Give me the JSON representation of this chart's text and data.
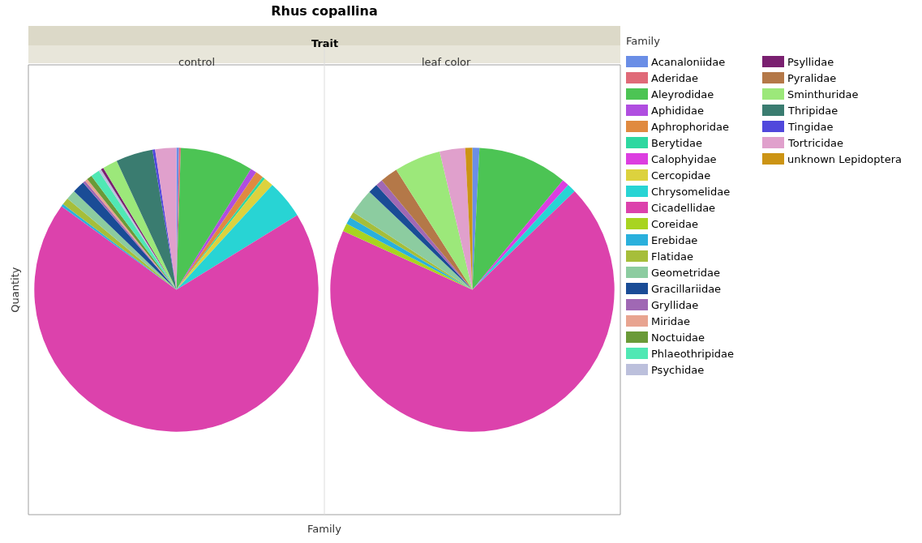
{
  "chart_data": {
    "type": "pie",
    "title": "Rhus copallina",
    "xlabel": "Family",
    "ylabel": "Quantity",
    "legend_title": "Family",
    "annotations": [
      "Trait"
    ],
    "legend": "right",
    "categories": [
      "Acanaloniidae",
      "Aderidae",
      "Aleyrodidae",
      "Aphididae",
      "Aphrophoridae",
      "Berytidae",
      "Calophyidae",
      "Cercopidae",
      "Chrysomelidae",
      "Cicadellidae",
      "Coreidae",
      "Erebidae",
      "Flatidae",
      "Geometridae",
      "Gracillariidae",
      "Gryllidae",
      "Miridae",
      "Noctuidae",
      "Phlaeothripidae",
      "Psychidae",
      "Psyllidae",
      "Pyralidae",
      "Sminthuridae",
      "Thripidae",
      "Tingidae",
      "Tortricidae",
      "unknown Lepidoptera"
    ],
    "colors": [
      "#6a8ee6",
      "#e06a78",
      "#4cc454",
      "#b04ee0",
      "#e08a40",
      "#2ed8a0",
      "#dc3ee0",
      "#dcd23e",
      "#28d4d4",
      "#dc42ac",
      "#a8d420",
      "#2ab0dc",
      "#a6be3a",
      "#8ccca0",
      "#1a4c96",
      "#a068b4",
      "#e8a490",
      "#6a9a38",
      "#50e8b4",
      "#bcc0dc",
      "#7a2070",
      "#b47848",
      "#9ce87a",
      "#3a7c70",
      "#5048dc",
      "#e0a0cc",
      "#cc9414"
    ],
    "series": [
      {
        "name": "control",
        "values": [
          0.3,
          0.2,
          8.3,
          0.7,
          0.9,
          0.3,
          0,
          1.1,
          4.4,
          68.8,
          0,
          0.3,
          0.8,
          1.1,
          1.4,
          0.3,
          0.3,
          0.6,
          1.0,
          0.3,
          0.3,
          0,
          1.7,
          4.2,
          0.3,
          2.4,
          0
        ]
      },
      {
        "name": "leaf color",
        "values": [
          0.8,
          0,
          10.2,
          0,
          0,
          0,
          0.8,
          0,
          1.0,
          69.0,
          0.9,
          0.8,
          0.7,
          2.9,
          1.1,
          0.8,
          0,
          0,
          0,
          0,
          0,
          2.0,
          5.3,
          0,
          0,
          2.9,
          0.8
        ]
      }
    ]
  }
}
